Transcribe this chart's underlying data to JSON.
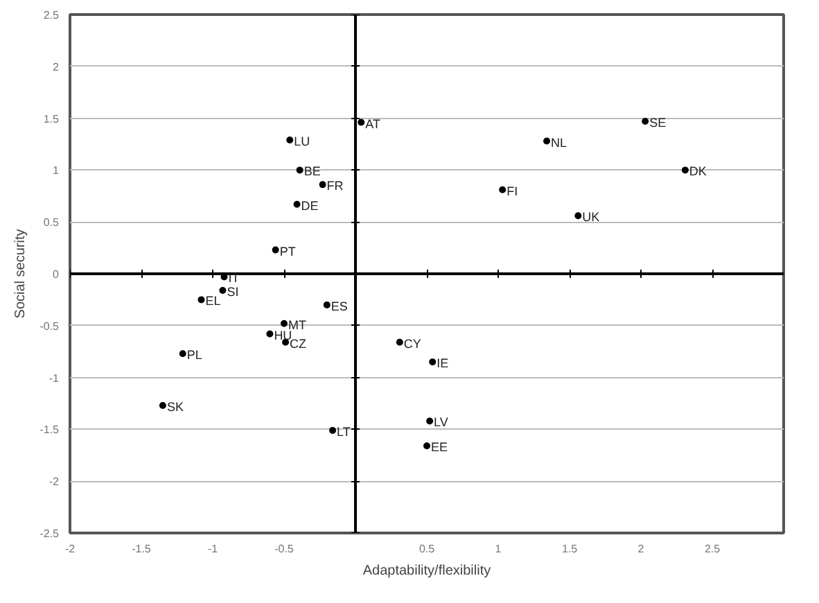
{
  "chart_data": {
    "type": "scatter",
    "xlabel": "Adaptability/flexibility",
    "ylabel": "Social security",
    "x": [
      0.04,
      -0.46,
      -0.39,
      -0.23,
      -0.41,
      -0.56,
      -0.92,
      -0.93,
      -1.08,
      -0.2,
      -0.5,
      -0.6,
      -0.49,
      -1.21,
      -1.35,
      -0.16,
      0.31,
      0.54,
      0.52,
      0.5,
      1.34,
      2.03,
      1.03,
      2.31,
      1.56
    ],
    "values": [
      1.46,
      1.29,
      1.0,
      0.86,
      0.67,
      0.23,
      -0.03,
      -0.16,
      -0.25,
      -0.3,
      -0.48,
      -0.58,
      -0.66,
      -0.77,
      -1.27,
      -1.51,
      -0.66,
      -0.85,
      -1.42,
      -1.66,
      1.28,
      1.47,
      0.81,
      1.0,
      0.56
    ],
    "value_labels": [
      "AT",
      "LU",
      "BE",
      "FR",
      "DE",
      "PT",
      "IT",
      "SI",
      "EL",
      "ES",
      "MT",
      "HU",
      "CZ",
      "PL",
      "SK",
      "LT",
      "CY",
      "IE",
      "LV",
      "EE",
      "NL",
      "SE",
      "FI",
      "DK",
      "UK"
    ],
    "color": "#000000",
    "marker": "circle",
    "grid": "y",
    "xlim": [
      -2,
      3
    ],
    "xticks": [
      -2,
      -1.5,
      -1,
      -0.5,
      0.5,
      1,
      1.5,
      2,
      2.5
    ],
    "ylim": [
      -2.5,
      2.5
    ],
    "yticks": [
      -2.5,
      -2,
      -1.5,
      -1,
      -0.5,
      0,
      0.5,
      1,
      1.5,
      2,
      2.5
    ]
  }
}
